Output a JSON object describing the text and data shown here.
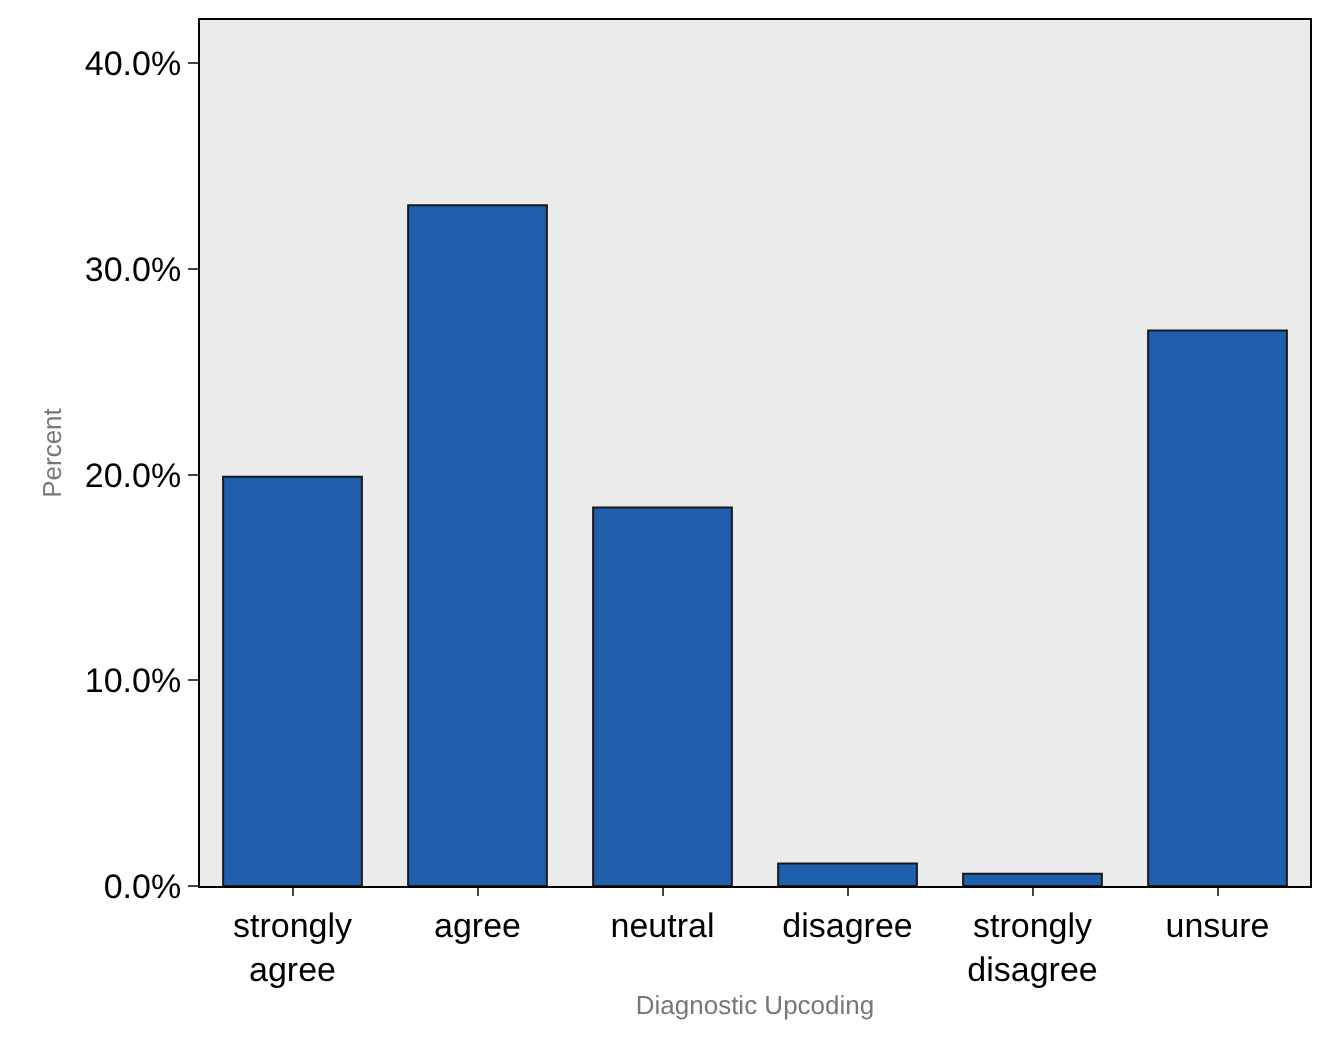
{
  "chart_data": {
    "type": "bar",
    "xlabel": "Diagnostic Upcoding",
    "ylabel": "Percent",
    "categories": [
      "strongly agree",
      "agree",
      "neutral",
      "disagree",
      "strongly disagree",
      "unsure"
    ],
    "values": [
      19.9,
      33.1,
      18.4,
      1.1,
      0.6,
      27.0
    ],
    "color": "#1f5fad",
    "ylim": [
      0,
      42.1
    ],
    "yticks": [
      {
        "value": 0,
        "label": "0.0%"
      },
      {
        "value": 10,
        "label": "10.0%"
      },
      {
        "value": 20,
        "label": "20.0%"
      },
      {
        "value": 30,
        "label": "30.0%"
      },
      {
        "value": 40,
        "label": "40.0%"
      }
    ],
    "grid": false,
    "legend": false
  }
}
